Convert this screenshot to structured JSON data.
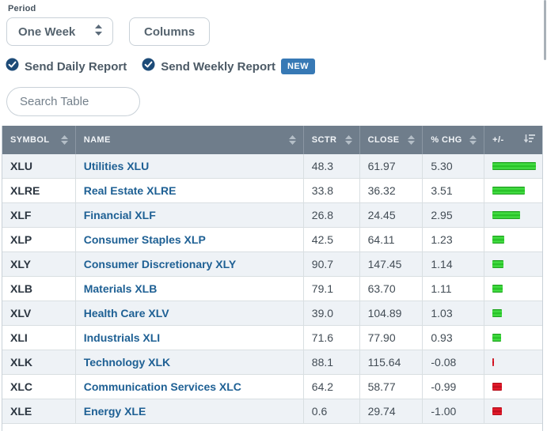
{
  "controls": {
    "period_label": "Period",
    "period_value": "One Week",
    "columns_button": "Columns",
    "send_daily_label": "Send Daily Report",
    "send_weekly_label": "Send Weekly Report",
    "new_badge": "NEW",
    "search_placeholder": "Search Table"
  },
  "table": {
    "columns": [
      {
        "key": "symbol",
        "label": "SYMBOL",
        "sort": "both"
      },
      {
        "key": "name",
        "label": "NAME",
        "sort": "both"
      },
      {
        "key": "sctr",
        "label": "SCTR",
        "sort": "both"
      },
      {
        "key": "close",
        "label": "CLOSE",
        "sort": "both"
      },
      {
        "key": "pct_chg",
        "label": "% CHG",
        "sort": "both"
      },
      {
        "key": "bar",
        "label": "+/-",
        "sort": "amount-desc"
      }
    ],
    "rows": [
      {
        "symbol": "XLU",
        "name": "Utilities XLU",
        "sctr": "48.3",
        "close": "61.97",
        "pct_chg": "5.30",
        "pct_value": 5.3
      },
      {
        "symbol": "XLRE",
        "name": "Real Estate XLRE",
        "sctr": "33.8",
        "close": "36.32",
        "pct_chg": "3.51",
        "pct_value": 3.51
      },
      {
        "symbol": "XLF",
        "name": "Financial XLF",
        "sctr": "26.8",
        "close": "24.45",
        "pct_chg": "2.95",
        "pct_value": 2.95
      },
      {
        "symbol": "XLP",
        "name": "Consumer Staples XLP",
        "sctr": "42.5",
        "close": "64.11",
        "pct_chg": "1.23",
        "pct_value": 1.23
      },
      {
        "symbol": "XLY",
        "name": "Consumer Discretionary XLY",
        "sctr": "90.7",
        "close": "147.45",
        "pct_chg": "1.14",
        "pct_value": 1.14
      },
      {
        "symbol": "XLB",
        "name": "Materials XLB",
        "sctr": "79.1",
        "close": "63.70",
        "pct_chg": "1.11",
        "pct_value": 1.11
      },
      {
        "symbol": "XLV",
        "name": "Health Care XLV",
        "sctr": "39.0",
        "close": "104.89",
        "pct_chg": "1.03",
        "pct_value": 1.03
      },
      {
        "symbol": "XLI",
        "name": "Industrials XLI",
        "sctr": "71.6",
        "close": "77.90",
        "pct_chg": "0.93",
        "pct_value": 0.93
      },
      {
        "symbol": "XLK",
        "name": "Technology XLK",
        "sctr": "88.1",
        "close": "115.64",
        "pct_chg": "-0.08",
        "pct_value": -0.08
      },
      {
        "symbol": "XLC",
        "name": "Communication Services XLC",
        "sctr": "64.2",
        "close": "58.77",
        "pct_chg": "-0.99",
        "pct_value": -0.99
      },
      {
        "symbol": "XLE",
        "name": "Energy XLE",
        "sctr": "0.6",
        "close": "29.74",
        "pct_chg": "-1.00",
        "pct_value": -1.0
      }
    ]
  },
  "colors": {
    "header_bg": "#6f7d8b",
    "row_shaded": "#eef2f6",
    "link": "#1e6094",
    "positive_bar": "#2ecc2e",
    "negative_bar": "#cc1020",
    "check_blue": "#1d4b78",
    "new_badge_bg": "#3779b5"
  }
}
